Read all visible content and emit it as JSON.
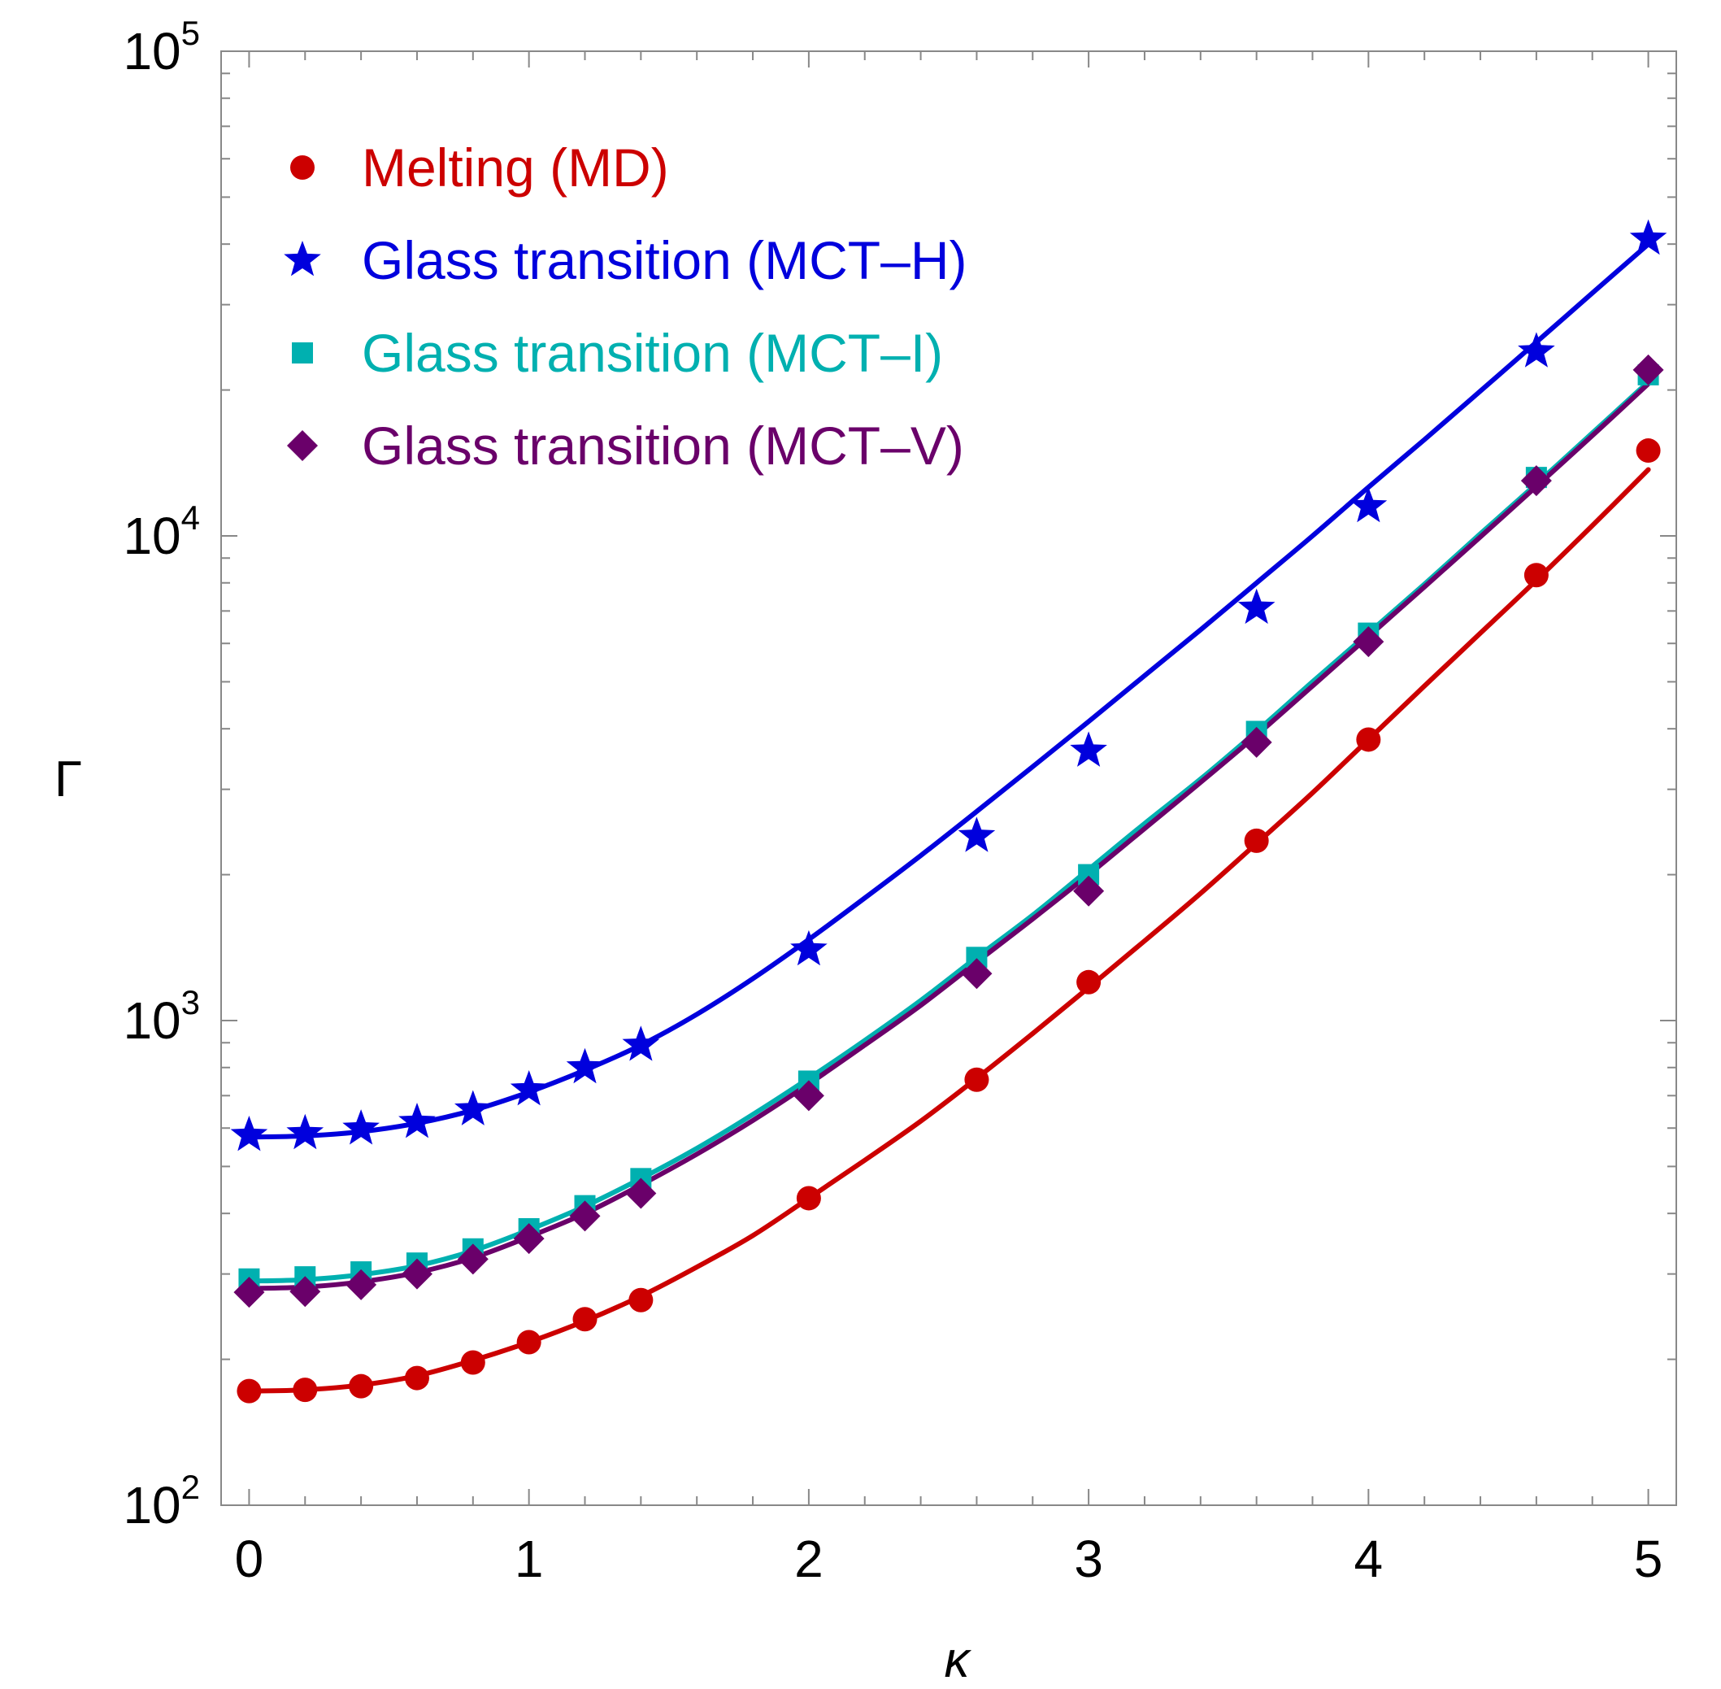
{
  "chart_data": {
    "type": "scatter",
    "title": "",
    "xlabel": "κ",
    "ylabel": "Γ",
    "xlim": [
      -0.1,
      5.1
    ],
    "ylim": [
      100,
      100000
    ],
    "yscale": "log",
    "x_ticks": [
      {
        "value": 0,
        "label": "0"
      },
      {
        "value": 1,
        "label": "1"
      },
      {
        "value": 2,
        "label": "2"
      },
      {
        "value": 3,
        "label": "3"
      },
      {
        "value": 4,
        "label": "4"
      },
      {
        "value": 5,
        "label": "5"
      }
    ],
    "y_ticks": [
      {
        "value": 100,
        "base": "10",
        "exp": "2"
      },
      {
        "value": 1000,
        "base": "10",
        "exp": "3"
      },
      {
        "value": 10000,
        "base": "10",
        "exp": "4"
      },
      {
        "value": 100000,
        "base": "10",
        "exp": "5"
      }
    ],
    "grid": false,
    "legend_position": "top-left",
    "series": [
      {
        "name": "Melting (MD)",
        "marker": "circle",
        "color": "#cc0000",
        "x": [
          0,
          0.2,
          0.4,
          0.6,
          0.8,
          1.0,
          1.2,
          1.4,
          2.0,
          2.6,
          3.0,
          3.6,
          4.0,
          4.6,
          5.0
        ],
        "y": [
          172,
          173,
          176,
          183,
          197,
          217,
          242,
          265,
          430,
          755,
          1200,
          2350,
          3800,
          8300,
          15000
        ],
        "curve_x": [
          0,
          0.2,
          0.4,
          0.6,
          0.8,
          1.0,
          1.2,
          1.4,
          1.6,
          1.8,
          2.0,
          2.2,
          2.4,
          2.6,
          2.8,
          3.0,
          3.2,
          3.4,
          3.6,
          3.8,
          4.0,
          4.2,
          4.4,
          4.6,
          4.8,
          5.0
        ],
        "curve_y": [
          172,
          173,
          177,
          185,
          199,
          217,
          240,
          270,
          310,
          360,
          430,
          515,
          620,
          760,
          940,
          1170,
          1460,
          1830,
          2320,
          2950,
          3800,
          4900,
          6300,
          8100,
          10500,
          13700
        ]
      },
      {
        "name": "Glass transition (MCT–H)",
        "marker": "star",
        "color": "#0000dd",
        "x": [
          0,
          0.2,
          0.4,
          0.6,
          0.8,
          1.0,
          1.2,
          1.4,
          2.0,
          2.6,
          3.0,
          3.6,
          4.0,
          4.6,
          5.0
        ],
        "y": [
          580,
          585,
          598,
          617,
          655,
          720,
          800,
          890,
          1400,
          2400,
          3600,
          7100,
          11500,
          24000,
          41000
        ],
        "curve_x": [
          0,
          0.2,
          0.4,
          0.6,
          0.8,
          1.0,
          1.2,
          1.4,
          1.6,
          1.8,
          2.0,
          2.2,
          2.4,
          2.6,
          2.8,
          3.0,
          3.2,
          3.4,
          3.6,
          3.8,
          4.0,
          4.2,
          4.4,
          4.6,
          4.8,
          5.0
        ],
        "curve_y": [
          575,
          578,
          590,
          614,
          653,
          712,
          790,
          890,
          1030,
          1220,
          1470,
          1790,
          2190,
          2700,
          3340,
          4140,
          5150,
          6400,
          8000,
          10000,
          12600,
          15800,
          19900,
          25100,
          31700,
          40000
        ]
      },
      {
        "name": "Glass transition (MCT–I)",
        "marker": "square",
        "color": "#00b0b0",
        "x": [
          0,
          0.2,
          0.4,
          0.6,
          0.8,
          1.0,
          1.2,
          1.4,
          2.0,
          2.6,
          3.0,
          3.6,
          4.0,
          4.6,
          5.0
        ],
        "y": [
          293,
          296,
          303,
          316,
          338,
          372,
          415,
          472,
          750,
          1350,
          2000,
          3950,
          6300,
          13200,
          21500
        ],
        "curve_x": [
          0,
          0.2,
          0.4,
          0.6,
          0.8,
          1.0,
          1.2,
          1.4,
          1.6,
          1.8,
          2.0,
          2.2,
          2.4,
          2.6,
          2.8,
          3.0,
          3.2,
          3.4,
          3.6,
          3.8,
          4.0,
          4.2,
          4.4,
          4.6,
          4.8,
          5.0
        ],
        "curve_y": [
          290,
          292,
          299,
          312,
          335,
          370,
          414,
          472,
          545,
          640,
          760,
          910,
          1100,
          1350,
          1650,
          2050,
          2550,
          3150,
          3950,
          5000,
          6300,
          7950,
          10100,
          12800,
          16300,
          20800
        ]
      },
      {
        "name": "Glass transition (MCT–V)",
        "marker": "diamond",
        "color": "#6a006a",
        "x": [
          0,
          0.2,
          0.4,
          0.6,
          0.8,
          1.0,
          1.2,
          1.4,
          2.0,
          2.6,
          3.0,
          3.6,
          4.0,
          4.6,
          5.0
        ],
        "y": [
          275,
          276,
          285,
          300,
          322,
          355,
          395,
          440,
          700,
          1250,
          1850,
          3750,
          6050,
          13000,
          22000
        ],
        "curve_x": [
          0,
          0.2,
          0.4,
          0.6,
          0.8,
          1.0,
          1.2,
          1.4,
          1.6,
          1.8,
          2.0,
          2.2,
          2.4,
          2.6,
          2.8,
          3.0,
          3.2,
          3.4,
          3.6,
          3.8,
          4.0,
          4.2,
          4.4,
          4.6,
          4.8,
          5.0
        ],
        "curve_y": [
          280,
          282,
          289,
          302,
          324,
          358,
          400,
          458,
          530,
          622,
          740,
          890,
          1075,
          1320,
          1620,
          2000,
          2490,
          3100,
          3880,
          4900,
          6200,
          7850,
          9950,
          12650,
          16100,
          20600
        ]
      }
    ]
  }
}
